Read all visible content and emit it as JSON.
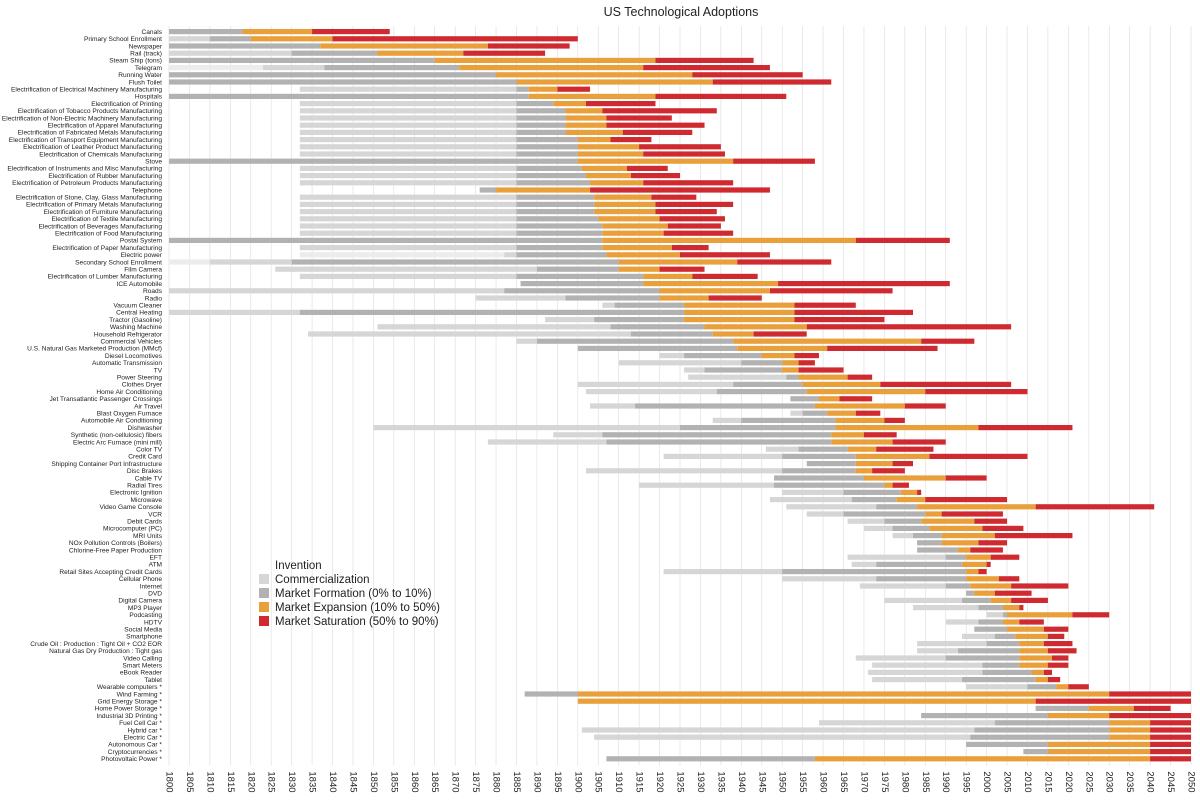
{
  "chart_data": {
    "type": "gantt-stacked-timeline",
    "title": "US Technological Adoptions",
    "xlim": [
      1800,
      2050
    ],
    "x_ticks": [
      1800,
      1805,
      1810,
      1815,
      1820,
      1825,
      1830,
      1835,
      1840,
      1845,
      1850,
      1855,
      1860,
      1865,
      1870,
      1875,
      1880,
      1885,
      1890,
      1895,
      1900,
      1905,
      1910,
      1915,
      1920,
      1925,
      1930,
      1935,
      1940,
      1945,
      1950,
      1955,
      1960,
      1965,
      1970,
      1975,
      1980,
      1985,
      1990,
      1995,
      2000,
      2005,
      2010,
      2015,
      2020,
      2025,
      2030,
      2035,
      2040,
      2045,
      2050
    ],
    "legend": {
      "heading": "Invention",
      "items": [
        {
          "key": "commercialization",
          "label": "Commercialization",
          "color": "#d6d6d6"
        },
        {
          "key": "formation",
          "label": "Market Formation (0% to 10%)",
          "color": "#b2b2b2"
        },
        {
          "key": "expansion",
          "label": "Market Expansion (10% to 50%)",
          "color": "#eaa03a"
        },
        {
          "key": "saturation",
          "label": "Market Saturation (50% to 90%)",
          "color": "#cf2a30"
        }
      ]
    },
    "phase_colors": {
      "invention": "#ececec",
      "commercialization": "#d6d6d6",
      "formation": "#b2b2b2",
      "expansion": "#eaa03a",
      "saturation": "#cf2a30"
    },
    "rows": [
      {
        "label": "Canals",
        "b": [
          1800,
          1800,
          1818,
          1835,
          1854
        ]
      },
      {
        "label": "Primary School Enrollment",
        "b": [
          1800,
          1810,
          1820,
          1840,
          1900
        ]
      },
      {
        "label": "Newspaper",
        "b": [
          1800,
          1800,
          1800,
          1837,
          1878,
          1898
        ]
      },
      {
        "label": "Rail (track)",
        "b": [
          1800,
          1800,
          1830,
          1851,
          1872,
          1892
        ]
      },
      {
        "label": "Steam Ship (tons)",
        "b": [
          1800,
          1800,
          1800,
          1865,
          1919,
          1943
        ]
      },
      {
        "label": "Telegram",
        "b": [
          1800,
          1823,
          1838,
          1871,
          1916,
          1947
        ]
      },
      {
        "label": "Running Water",
        "b": [
          1800,
          1800,
          1800,
          1880,
          1928,
          1955
        ]
      },
      {
        "label": "Flush Toilet",
        "b": [
          1800,
          1800,
          1800,
          1885,
          1933,
          1962
        ]
      },
      {
        "label": "Electrification of Electrical Machinery Manufacturing",
        "b": [
          1832,
          1832,
          1885,
          1888,
          1895,
          1903
        ]
      },
      {
        "label": "Hospitals",
        "b": [
          1800,
          1800,
          1800,
          1888,
          1919,
          1951
        ]
      },
      {
        "label": "Electrification of Printing",
        "b": [
          1832,
          1832,
          1885,
          1894,
          1902,
          1919
        ]
      },
      {
        "label": "Electrification of Tobacco Products Manufacturing",
        "b": [
          1832,
          1832,
          1885,
          1897,
          1906,
          1934
        ]
      },
      {
        "label": "Electrification of Non-Electric Machinery Manufacturing",
        "b": [
          1832,
          1832,
          1885,
          1897,
          1907,
          1923
        ]
      },
      {
        "label": "Electrification of Apparel Manufacturing",
        "b": [
          1832,
          1832,
          1885,
          1897,
          1907,
          1931
        ]
      },
      {
        "label": "Electrification of Fabricated Metals Manufacturing",
        "b": [
          1832,
          1832,
          1885,
          1897,
          1911,
          1928
        ]
      },
      {
        "label": "Electrification of Transport Equipment Manufacturing",
        "b": [
          1832,
          1832,
          1885,
          1900,
          1908,
          1918
        ]
      },
      {
        "label": "Electrification of Leather Product Manufacturing",
        "b": [
          1832,
          1832,
          1885,
          1900,
          1915,
          1935
        ]
      },
      {
        "label": "Electrification of Chemicals Manufacturing",
        "b": [
          1832,
          1832,
          1885,
          1900,
          1916,
          1936
        ]
      },
      {
        "label": "Stove",
        "b": [
          1800,
          1800,
          1800,
          1900,
          1938,
          1958
        ]
      },
      {
        "label": "Electrification of Instruments and Misc Manufacturing",
        "b": [
          1832,
          1832,
          1885,
          1901,
          1912,
          1922
        ]
      },
      {
        "label": "Electrification of Rubber Manufacturing",
        "b": [
          1832,
          1832,
          1885,
          1902,
          1913,
          1925
        ]
      },
      {
        "label": "Electrification of Petroleum Products Manufacturing",
        "b": [
          1832,
          1832,
          1885,
          1903,
          1916,
          1938
        ]
      },
      {
        "label": "Telephone",
        "b": [
          1876,
          1876,
          1880,
          1903,
          1947
        ]
      },
      {
        "label": "Electrification of Stone, Clay, Glass Manufacturing",
        "b": [
          1832,
          1832,
          1885,
          1904,
          1918,
          1929
        ]
      },
      {
        "label": "Electrification of Primary Metals Manufacturing",
        "b": [
          1832,
          1832,
          1885,
          1904,
          1919,
          1938
        ]
      },
      {
        "label": "Electrification of Furniture Manufacturing",
        "b": [
          1832,
          1832,
          1885,
          1904,
          1919,
          1934
        ]
      },
      {
        "label": "Electrification of Textile Manufacturing",
        "b": [
          1832,
          1832,
          1885,
          1905,
          1920,
          1936
        ]
      },
      {
        "label": "Electrification of Beverages Manufacturing",
        "b": [
          1832,
          1832,
          1885,
          1906,
          1922,
          1935
        ]
      },
      {
        "label": "Electrification of Food Manufacturing",
        "b": [
          1832,
          1832,
          1885,
          1906,
          1921,
          1938
        ]
      },
      {
        "label": "Postal System",
        "b": [
          1800,
          1800,
          1800,
          1906,
          1968,
          1991
        ]
      },
      {
        "label": "Electrification of Paper Manufacturing",
        "b": [
          1832,
          1832,
          1885,
          1906,
          1923,
          1932
        ]
      },
      {
        "label": "Electric power",
        "b": [
          1832,
          1882,
          1885,
          1907,
          1925,
          1947
        ]
      },
      {
        "label": "Secondary School Enrollment",
        "b": [
          1800,
          1810,
          1830,
          1910,
          1939,
          1962
        ]
      },
      {
        "label": "Film Camera",
        "b": [
          1826,
          1826,
          1890,
          1910,
          1920,
          1931
        ]
      },
      {
        "label": "Electrification of Lumber Manufacturing",
        "b": [
          1832,
          1832,
          1885,
          1916,
          1928,
          1944
        ]
      },
      {
        "label": "ICE Automobile",
        "b": [
          1886,
          1886,
          1886,
          1916,
          1949,
          1991
        ]
      },
      {
        "label": "Roads",
        "b": [
          1800,
          1800,
          1882,
          1920,
          1947,
          1977
        ]
      },
      {
        "label": "Radio",
        "b": [
          1875,
          1875,
          1897,
          1920,
          1932,
          1945
        ]
      },
      {
        "label": "Vacuum Cleaner",
        "b": [
          1906,
          1906,
          1909,
          1926,
          1953,
          1968
        ]
      },
      {
        "label": "Central Heating",
        "b": [
          1800,
          1800,
          1832,
          1926,
          1953,
          1982
        ]
      },
      {
        "label": "Tractor (Gasoline)",
        "b": [
          1892,
          1892,
          1904,
          1926,
          1953,
          1975
        ]
      },
      {
        "label": "Washing Machine",
        "b": [
          1851,
          1851,
          1908,
          1931,
          1956,
          2006
        ]
      },
      {
        "label": "Household Refrigerator",
        "b": [
          1834,
          1834,
          1913,
          1933,
          1943,
          1956
        ]
      },
      {
        "label": "Commercial Vehicles",
        "b": [
          1885,
          1885,
          1890,
          1938,
          1984,
          1997
        ]
      },
      {
        "label": "U.S. Natural Gas Marketed Production (MMcf)",
        "b": [
          1900,
          1900,
          1900,
          1939,
          1961,
          1988
        ]
      },
      {
        "label": "Diesel Locomotives",
        "b": [
          1920,
          1920,
          1926,
          1945,
          1953,
          1959
        ]
      },
      {
        "label": "Automatic Transmission",
        "b": [
          1910,
          1910,
          1940,
          1950,
          1954,
          1958
        ]
      },
      {
        "label": "TV",
        "b": [
          1926,
          1926,
          1931,
          1950,
          1954,
          1965
        ]
      },
      {
        "label": "Power Steering",
        "b": [
          1927,
          1927,
          1951,
          1954,
          1966,
          1972
        ]
      },
      {
        "label": "Clothes Dryer",
        "b": [
          1900,
          1900,
          1938,
          1955,
          1974,
          2006
        ]
      },
      {
        "label": "Home Air Conditioning",
        "b": [
          1902,
          1902,
          1934,
          1956,
          1985,
          2010
        ]
      },
      {
        "label": "Jet Transatlantic Passenger Crossings",
        "b": [
          1952,
          1952,
          1952,
          1959,
          1964,
          1972
        ]
      },
      {
        "label": "Air Travel",
        "b": [
          1903,
          1903,
          1914,
          1958,
          1980,
          1990
        ]
      },
      {
        "label": "Blast Oxygen Furnace",
        "b": [
          1952,
          1952,
          1955,
          1961,
          1968,
          1974
        ]
      },
      {
        "label": "Automobile Air Conditioning",
        "b": [
          1933,
          1933,
          1940,
          1963,
          1975,
          1980
        ]
      },
      {
        "label": "Dishwasher",
        "b": [
          1850,
          1850,
          1925,
          1963,
          1998,
          2021
        ]
      },
      {
        "label": "Synthetic (non-cellulosic) fibers",
        "b": [
          1894,
          1894,
          1906,
          1962,
          1970,
          1978
        ]
      },
      {
        "label": "Electric Arc Furnace (mini mill)",
        "b": [
          1878,
          1878,
          1907,
          1962,
          1977,
          1990
        ]
      },
      {
        "label": "Color TV",
        "b": [
          1946,
          1946,
          1954,
          1966,
          1973,
          1987
        ]
      },
      {
        "label": "Credit Card",
        "b": [
          1921,
          1921,
          1950,
          1968,
          1986,
          2010
        ]
      },
      {
        "label": "Shipping Container Port Infrastructure",
        "b": [
          1956,
          1956,
          1956,
          1968,
          1977,
          1982
        ]
      },
      {
        "label": "Disc Brakes",
        "b": [
          1902,
          1902,
          1950,
          1968,
          1972,
          1980
        ]
      },
      {
        "label": "Cable TV",
        "b": [
          1948,
          1948,
          1948,
          1970,
          1990,
          2000
        ]
      },
      {
        "label": "Radial Tires",
        "b": [
          1915,
          1915,
          1948,
          1975,
          1977,
          1981
        ]
      },
      {
        "label": "Electronic Ignition",
        "b": [
          1950,
          1950,
          1965,
          1979,
          1983,
          1984
        ]
      },
      {
        "label": "Microwave",
        "b": [
          1947,
          1947,
          1967,
          1978,
          1985,
          2005
        ]
      },
      {
        "label": "Video Game Console",
        "b": [
          1951,
          1951,
          1973,
          1983,
          2012,
          2041
        ]
      },
      {
        "label": "VCR",
        "b": [
          1956,
          1956,
          1965,
          1985,
          1989,
          2004
        ]
      },
      {
        "label": "Debit Cards",
        "b": [
          1966,
          1966,
          1975,
          1984,
          1997,
          2005
        ]
      },
      {
        "label": "Microcomputer (PC)",
        "b": [
          1970,
          1970,
          1977,
          1986,
          1999,
          2009
        ]
      },
      {
        "label": "MRI Units",
        "b": [
          1977,
          1977,
          1982,
          1989,
          2002,
          2021
        ]
      },
      {
        "label": "NOx Pollution Controls (Boilers)",
        "b": [
          1983,
          1983,
          1983,
          1989,
          1998,
          2005
        ]
      },
      {
        "label": "Chlorine-Free Paper Production",
        "b": [
          1983,
          1983,
          1983,
          1993,
          1996,
          2004
        ]
      },
      {
        "label": "EFT",
        "b": [
          1966,
          1966,
          1990,
          1995,
          2001,
          2008
        ]
      },
      {
        "label": "ATM",
        "b": [
          1967,
          1967,
          1973,
          1994,
          2000,
          2001
        ]
      },
      {
        "label": "Retail Sites Accepting Credit Cards",
        "b": [
          1921,
          1921,
          1950,
          1995,
          1998,
          2000
        ]
      },
      {
        "label": "Cellular Phone",
        "b": [
          1950,
          1950,
          1973,
          1995,
          2003,
          2008
        ]
      },
      {
        "label": "Internet",
        "b": [
          1969,
          1969,
          1990,
          1996,
          2006,
          2020
        ]
      },
      {
        "label": "DVD",
        "b": [
          1995,
          1995,
          1995,
          1997,
          2002,
          2011
        ]
      },
      {
        "label": "Digital Camera",
        "b": [
          1975,
          1975,
          1994,
          2001,
          2006,
          2015
        ]
      },
      {
        "label": "MP3 Player",
        "b": [
          1982,
          1982,
          1998,
          2004,
          2008,
          2009
        ]
      },
      {
        "label": "Podcasting",
        "b": [
          2000,
          2000,
          2004,
          2005,
          2021,
          2030
        ]
      },
      {
        "label": "HDTV",
        "b": [
          1990,
          1990,
          1998,
          2004,
          2008,
          2014
        ]
      },
      {
        "label": "Social Media",
        "b": [
          1997,
          1997,
          1997,
          2005,
          2014,
          2020
        ]
      },
      {
        "label": "Smartphone",
        "b": [
          1994,
          1994,
          2002,
          2007,
          2015,
          2019
        ]
      },
      {
        "label": "Crude Oil : Production : Tight Oil + CO2 EOR",
        "b": [
          1983,
          1983,
          2000,
          2008,
          2014,
          2021
        ]
      },
      {
        "label": "Natural Gas Dry Production : Tight gas",
        "b": [
          1983,
          1983,
          1993,
          2008,
          2015,
          2022
        ]
      },
      {
        "label": "Video Calling",
        "b": [
          1968,
          1968,
          1990,
          2008,
          2016,
          2020
        ]
      },
      {
        "label": "Smart Meters",
        "b": [
          1972,
          1972,
          1999,
          2008,
          2015,
          2020
        ]
      },
      {
        "label": "eBook Reader",
        "b": [
          1971,
          1971,
          1999,
          2011,
          2014,
          2016
        ]
      },
      {
        "label": "Tablet",
        "b": [
          1972,
          1972,
          1994,
          2012,
          2015,
          2018
        ]
      },
      {
        "label": "Wearable computers *",
        "b": [
          1995,
          1995,
          2010,
          2017,
          2020,
          2025
        ]
      },
      {
        "label": "Wind Farming *",
        "b": [
          1887,
          1887,
          1900,
          2030,
          2050
        ]
      },
      {
        "label": "Grid Energy Storage *",
        "b": [
          1900,
          1900,
          1900,
          2012,
          2050
        ]
      },
      {
        "label": "Home Power Storage *",
        "b": [
          2012,
          2012,
          2012,
          2025,
          2036,
          2045
        ]
      },
      {
        "label": "Industrial 3D Printing *",
        "b": [
          1984,
          1984,
          2015,
          2030,
          2050
        ]
      },
      {
        "label": "Fuel Cell Car *",
        "b": [
          1959,
          1959,
          2002,
          2030,
          2040,
          2050
        ]
      },
      {
        "label": "Hybrid car *",
        "b": [
          1901,
          1901,
          1997,
          2030,
          2040,
          2050
        ]
      },
      {
        "label": "Electric Car *",
        "b": [
          1904,
          1904,
          1996,
          2030,
          2040,
          2050
        ]
      },
      {
        "label": "Autonomous Car *",
        "b": [
          1995,
          1995,
          2015,
          2040,
          2050
        ]
      },
      {
        "label": "Cryptocurrencies *",
        "b": [
          2009,
          2009,
          2015,
          2040,
          2050
        ]
      },
      {
        "label": "Photovoltaic Power *",
        "b": [
          1907,
          1907,
          1958,
          2040,
          2050
        ]
      }
    ]
  }
}
